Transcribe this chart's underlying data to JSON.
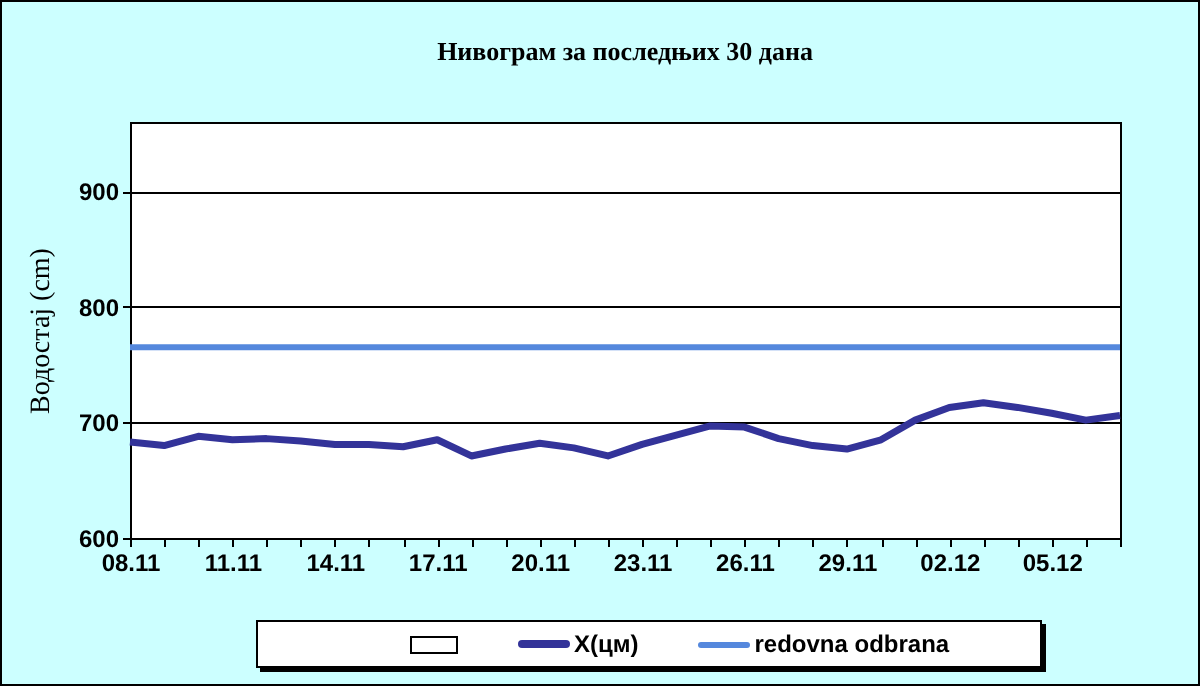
{
  "chart_data": {
    "type": "line",
    "title": "Нивограм за последњих 30 дана",
    "ylabel": "Водостај (cm)",
    "categories": [
      "08.11",
      null,
      null,
      "11.11",
      null,
      null,
      "14.11",
      null,
      null,
      "17.11",
      null,
      null,
      "20.11",
      null,
      null,
      "23.11",
      null,
      null,
      "26.11",
      null,
      null,
      "29.11",
      null,
      null,
      "02.12",
      null,
      null,
      "05.12",
      null,
      null
    ],
    "series": [
      {
        "name": "X(цм)",
        "color": "#333399",
        "values": [
          683,
          680,
          688,
          685,
          686,
          684,
          681,
          681,
          679,
          685,
          671,
          677,
          682,
          678,
          671,
          681,
          689,
          697,
          696,
          686,
          680,
          677,
          685,
          702,
          713,
          717,
          713,
          708,
          702,
          706
        ]
      }
    ],
    "ref_lines": [
      {
        "axis": "y",
        "value": 765,
        "label": "redovna odbrana",
        "color": "#5588dd"
      }
    ],
    "ylim": [
      600,
      960
    ],
    "yticks": [
      600,
      700,
      800,
      900
    ],
    "grid": "y",
    "legend": "bottom",
    "marker": "none",
    "line_style": "solid"
  }
}
